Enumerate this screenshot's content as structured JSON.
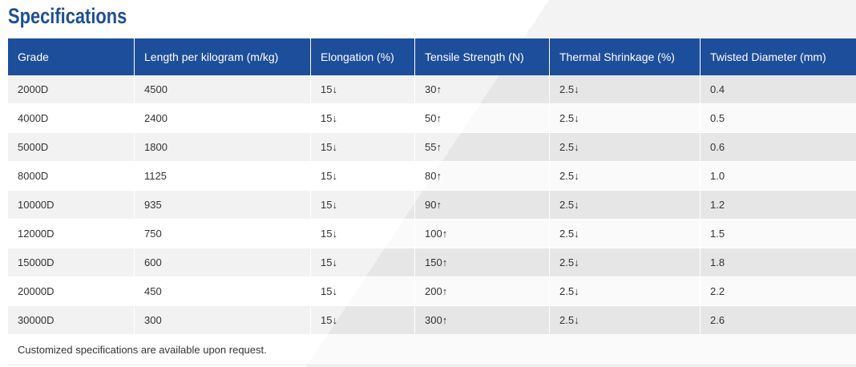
{
  "page": {
    "title": "Specifications"
  },
  "table": {
    "columns": [
      "Grade",
      "Length per kilogram (m/kg)",
      "Elongation (%)",
      "Tensile Strength (N)",
      "Thermal Shrinkage (%)",
      "Twisted Diameter (mm)"
    ],
    "rows": [
      [
        "2000D",
        "4500",
        "15↓",
        "30↑",
        "2.5↓",
        "0.4"
      ],
      [
        "4000D",
        "2400",
        "15↓",
        "50↑",
        "2.5↓",
        "0.5"
      ],
      [
        "5000D",
        "1800",
        "15↓",
        "55↑",
        "2.5↓",
        "0.6"
      ],
      [
        "8000D",
        "1125",
        "15↓",
        "80↑",
        "2.5↓",
        "1.0"
      ],
      [
        "10000D",
        "935",
        "15↓",
        "90↑",
        "2.5↓",
        "1.2"
      ],
      [
        "12000D",
        "750",
        "15↓",
        "100↑",
        "2.5↓",
        "1.5"
      ],
      [
        "15000D",
        "600",
        "15↓",
        "150↑",
        "2.5↓",
        "1.8"
      ],
      [
        "20000D",
        "450",
        "15↓",
        "200↑",
        "2.5↓",
        "2.2"
      ],
      [
        "30000D",
        "300",
        "15↓",
        "300↑",
        "2.5↓",
        "2.6"
      ]
    ],
    "note": "Customized specifications are available upon request."
  },
  "colors": {
    "brand_blue": "#1d4e9b",
    "header_text": "#ffffff",
    "body_text": "#333333",
    "page_bg": "#ffffff",
    "diagonal_bg": "#f3f3f3"
  }
}
